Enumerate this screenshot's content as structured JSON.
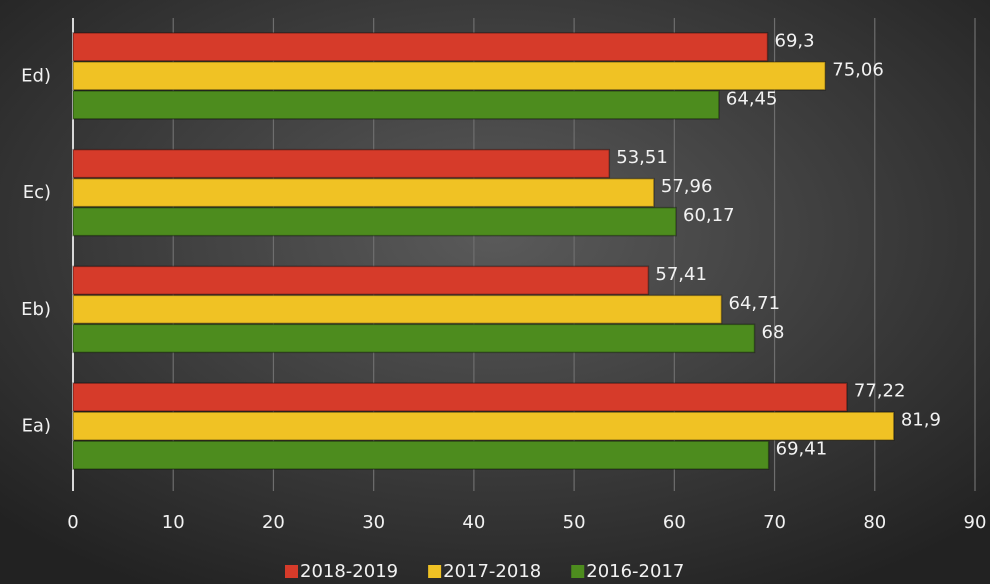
{
  "chart_data": {
    "type": "bar",
    "orientation": "horizontal",
    "categories": [
      "Ed)",
      "Ec)",
      "Eb)",
      "Ea)"
    ],
    "series": [
      {
        "name": "2018-2019",
        "color": "#d63b2a",
        "values": [
          69.3,
          53.51,
          57.41,
          77.22
        ],
        "value_labels": [
          "69,3",
          "53,51",
          "57,41",
          "77,22"
        ]
      },
      {
        "name": "2017-2018",
        "color": "#f0c224",
        "values": [
          75.06,
          57.96,
          64.71,
          81.9
        ],
        "value_labels": [
          "75,06",
          "57,96",
          "64,71",
          "81,9"
        ]
      },
      {
        "name": "2016-2017",
        "color": "#4d8c1e",
        "values": [
          64.45,
          60.17,
          68,
          69.41
        ],
        "value_labels": [
          "64,45",
          "60,17",
          "68",
          "69,41"
        ]
      }
    ],
    "xlim": [
      0,
      90
    ],
    "xticks": [
      0,
      10,
      20,
      30,
      40,
      50,
      60,
      70,
      80,
      90
    ],
    "grid": true,
    "legend": "bottom"
  }
}
